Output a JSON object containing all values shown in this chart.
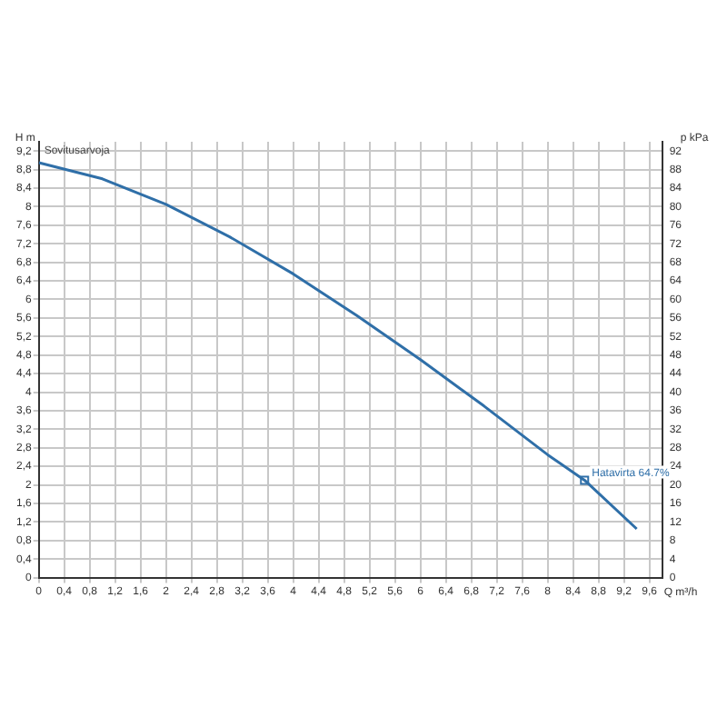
{
  "chart_data": {
    "type": "line",
    "xlabel": "Q m³/h",
    "ylabel": "H m",
    "y2label": "p kPa",
    "x": [
      0,
      1,
      2,
      3,
      4,
      5,
      6,
      7,
      8,
      8.58,
      9.4
    ],
    "series": [
      {
        "color": "#2f6fa8",
        "values": [
          8.95,
          8.6,
          8.05,
          7.35,
          6.55,
          5.65,
          4.7,
          3.7,
          2.65,
          2.1,
          1.05
        ]
      }
    ],
    "annotations": [
      "Sovitusarvoja",
      {
        "text": "Hatavirta 64.7%",
        "x": 8.58,
        "y": 2.1
      }
    ],
    "xlim": [
      0,
      9.8
    ],
    "ylim": [
      0,
      9.4
    ],
    "y2lim": [
      0,
      94
    ],
    "xticks": [
      0,
      {
        "value": 0.4,
        "label": "0,4"
      },
      {
        "value": 0.8,
        "label": "0,8"
      },
      {
        "value": 1.2,
        "label": "1,2"
      },
      {
        "value": 1.6,
        "label": "1,6"
      },
      2,
      {
        "value": 2.4,
        "label": "2,4"
      },
      {
        "value": 2.8,
        "label": "2,8"
      },
      {
        "value": 3.2,
        "label": "3,2"
      },
      {
        "value": 3.6,
        "label": "3,6"
      },
      4,
      {
        "value": 4.4,
        "label": "4,4"
      },
      {
        "value": 4.8,
        "label": "4,8"
      },
      {
        "value": 5.2,
        "label": "5,2"
      },
      {
        "value": 5.6,
        "label": "5,6"
      },
      6,
      {
        "value": 6.4,
        "label": "6,4"
      },
      {
        "value": 6.8,
        "label": "6,8"
      },
      {
        "value": 7.2,
        "label": "7,2"
      },
      {
        "value": 7.6,
        "label": "7,6"
      },
      8,
      {
        "value": 8.4,
        "label": "8,4"
      },
      {
        "value": 8.8,
        "label": "8,8"
      },
      {
        "value": 9.2,
        "label": "9,2"
      },
      {
        "value": 9.6,
        "label": "9,6"
      }
    ],
    "yticks": [
      0,
      {
        "value": 0.4,
        "label": "0,4"
      },
      {
        "value": 0.8,
        "label": "0,8"
      },
      {
        "value": 1.2,
        "label": "1,2"
      },
      {
        "value": 1.6,
        "label": "1,6"
      },
      2,
      {
        "value": 2.4,
        "label": "2,4"
      },
      {
        "value": 2.8,
        "label": "2,8"
      },
      {
        "value": 3.2,
        "label": "3,2"
      },
      {
        "value": 3.6,
        "label": "3,6"
      },
      4,
      {
        "value": 4.4,
        "label": "4,4"
      },
      {
        "value": 4.8,
        "label": "4,8"
      },
      {
        "value": 5.2,
        "label": "5,2"
      },
      {
        "value": 5.6,
        "label": "5,6"
      },
      6,
      {
        "value": 6.4,
        "label": "6,4"
      },
      {
        "value": 6.8,
        "label": "6,8"
      },
      {
        "value": 7.2,
        "label": "7,2"
      },
      {
        "value": 7.6,
        "label": "7,6"
      },
      8,
      {
        "value": 8.4,
        "label": "8,4"
      },
      {
        "value": 8.8,
        "label": "8,8"
      },
      {
        "value": 9.2,
        "label": "9,2"
      }
    ],
    "y2ticks": [
      0,
      4,
      8,
      12,
      16,
      20,
      24,
      28,
      32,
      36,
      40,
      44,
      48,
      52,
      56,
      60,
      64,
      68,
      72,
      76,
      80,
      84,
      88,
      92
    ],
    "grid": true,
    "legend": false,
    "marker": "none",
    "line_style": "solid"
  }
}
